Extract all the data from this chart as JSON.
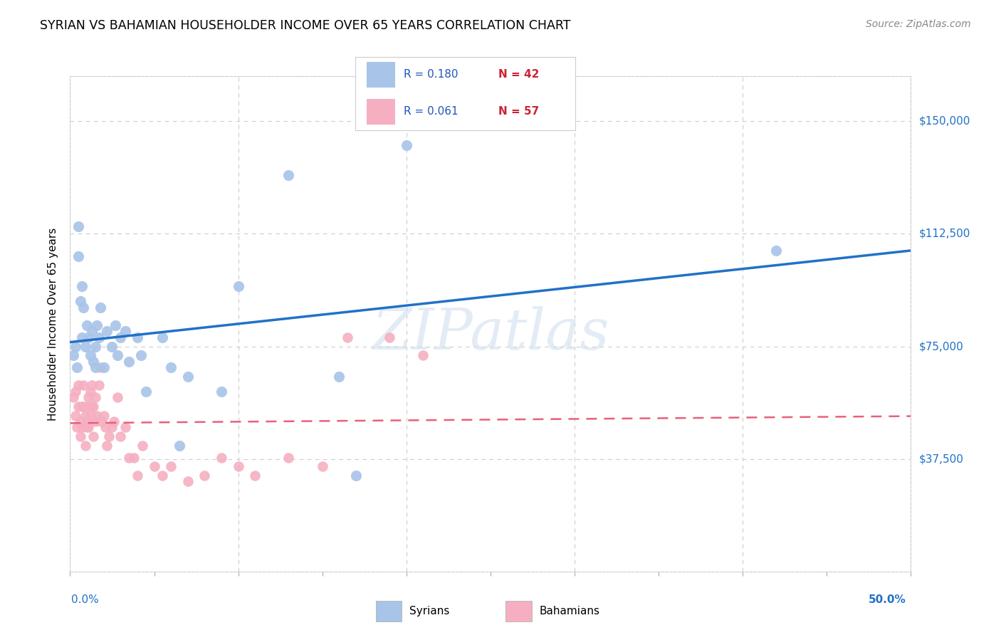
{
  "title": "SYRIAN VS BAHAMIAN HOUSEHOLDER INCOME OVER 65 YEARS CORRELATION CHART",
  "source": "Source: ZipAtlas.com",
  "ylabel": "Householder Income Over 65 years",
  "ytick_labels": [
    "$37,500",
    "$75,000",
    "$112,500",
    "$150,000"
  ],
  "ytick_values": [
    37500,
    75000,
    112500,
    150000
  ],
  "ylim": [
    0,
    165000
  ],
  "xlim": [
    0.0,
    0.5
  ],
  "syrians_R": 0.18,
  "syrians_N": 42,
  "bahamians_R": 0.061,
  "bahamians_N": 57,
  "syrian_color": "#a8c4e8",
  "bahamian_color": "#f5afc0",
  "syrian_line_color": "#2171c7",
  "bahamian_line_color": "#e8607a",
  "legend_text_color_R": "#2255bb",
  "legend_text_color_N": "#cc2233",
  "watermark": "ZIPatlas",
  "background_color": "#ffffff",
  "grid_color": "#cccccc",
  "syrian_x": [
    0.002,
    0.003,
    0.004,
    0.005,
    0.005,
    0.006,
    0.007,
    0.007,
    0.008,
    0.009,
    0.01,
    0.011,
    0.012,
    0.013,
    0.014,
    0.015,
    0.015,
    0.016,
    0.017,
    0.018,
    0.02,
    0.022,
    0.025,
    0.027,
    0.028,
    0.03,
    0.033,
    0.035,
    0.04,
    0.042,
    0.045,
    0.055,
    0.06,
    0.065,
    0.07,
    0.09,
    0.1,
    0.13,
    0.16,
    0.17,
    0.2,
    0.42
  ],
  "syrian_y": [
    72000,
    75000,
    68000,
    115000,
    105000,
    90000,
    95000,
    78000,
    88000,
    75000,
    82000,
    78000,
    72000,
    80000,
    70000,
    75000,
    68000,
    82000,
    78000,
    88000,
    68000,
    80000,
    75000,
    82000,
    72000,
    78000,
    80000,
    70000,
    78000,
    72000,
    60000,
    78000,
    68000,
    42000,
    65000,
    60000,
    95000,
    132000,
    65000,
    32000,
    142000,
    107000
  ],
  "bahamian_x": [
    0.002,
    0.003,
    0.003,
    0.004,
    0.005,
    0.005,
    0.006,
    0.006,
    0.007,
    0.007,
    0.008,
    0.008,
    0.009,
    0.009,
    0.01,
    0.01,
    0.01,
    0.011,
    0.011,
    0.012,
    0.012,
    0.013,
    0.013,
    0.014,
    0.014,
    0.015,
    0.015,
    0.016,
    0.017,
    0.018,
    0.019,
    0.02,
    0.021,
    0.022,
    0.023,
    0.025,
    0.026,
    0.028,
    0.03,
    0.033,
    0.035,
    0.038,
    0.04,
    0.043,
    0.05,
    0.055,
    0.06,
    0.07,
    0.08,
    0.09,
    0.1,
    0.11,
    0.13,
    0.15,
    0.165,
    0.19,
    0.21
  ],
  "bahamian_y": [
    58000,
    52000,
    60000,
    48000,
    55000,
    62000,
    50000,
    45000,
    55000,
    48000,
    55000,
    62000,
    52000,
    42000,
    50000,
    55000,
    48000,
    58000,
    48000,
    60000,
    52000,
    62000,
    55000,
    55000,
    45000,
    58000,
    50000,
    52000,
    62000,
    68000,
    50000,
    52000,
    48000,
    42000,
    45000,
    48000,
    50000,
    58000,
    45000,
    48000,
    38000,
    38000,
    32000,
    42000,
    35000,
    32000,
    35000,
    30000,
    32000,
    38000,
    35000,
    32000,
    38000,
    35000,
    78000,
    78000,
    72000
  ]
}
